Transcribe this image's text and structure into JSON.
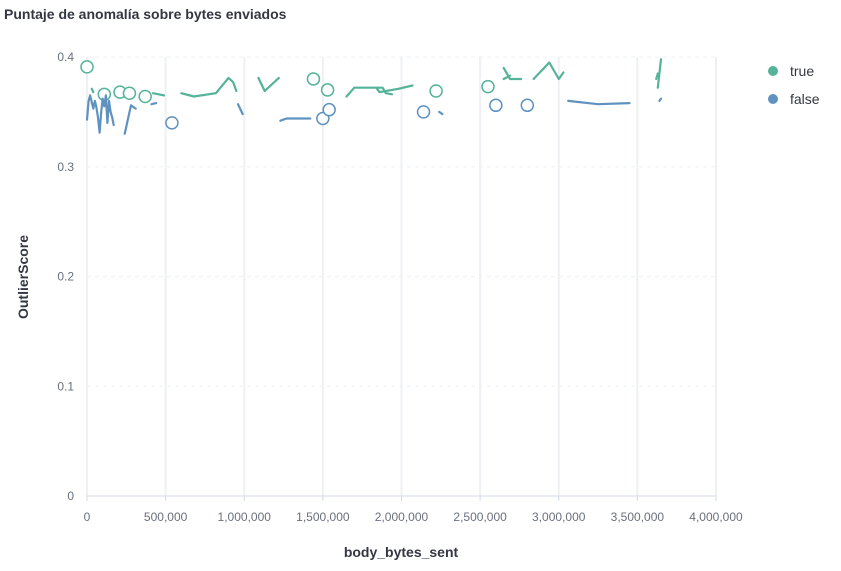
{
  "title": "Puntaje de anomalía sobre bytes enviados",
  "legend": {
    "items": [
      {
        "label": "true",
        "color": "#54b399"
      },
      {
        "label": "false",
        "color": "#6092c0"
      }
    ]
  },
  "chart_data": {
    "type": "line",
    "title": "Puntaje de anomalía sobre bytes enviados",
    "xlabel": "body_bytes_sent",
    "ylabel": "OutlierScore",
    "xlim": [
      0,
      4000000
    ],
    "ylim": [
      0,
      0.4
    ],
    "x_ticks": [
      0,
      500000,
      1000000,
      1500000,
      2000000,
      2500000,
      3000000,
      3500000,
      4000000
    ],
    "x_tick_labels": [
      "0",
      "500,000",
      "1,000,000",
      "1,500,000",
      "2,000,000",
      "2,500,000",
      "3,000,000",
      "3,500,000",
      "4,000,000"
    ],
    "y_ticks": [
      0,
      0.1,
      0.2,
      0.3,
      0.4
    ],
    "y_tick_labels": [
      "0",
      "0.1",
      "0.2",
      "0.3",
      "0.4"
    ],
    "grid": true,
    "legend_position": "top-right",
    "series": [
      {
        "name": "true",
        "color": "#54b399",
        "segments": [
          [
            [
              30000,
              0.371
            ],
            [
              40000,
              0.368
            ]
          ],
          [
            [
              420000,
              0.367
            ],
            [
              490000,
              0.365
            ]
          ],
          [
            [
              600000,
              0.367
            ],
            [
              680000,
              0.364
            ],
            [
              820000,
              0.367
            ],
            [
              900000,
              0.381
            ],
            [
              930000,
              0.377
            ],
            [
              950000,
              0.369
            ]
          ],
          [
            [
              1090000,
              0.381
            ],
            [
              1130000,
              0.369
            ],
            [
              1220000,
              0.381
            ]
          ],
          [
            [
              1650000,
              0.364
            ],
            [
              1700000,
              0.372
            ],
            [
              1880000,
              0.372
            ],
            [
              1900000,
              0.367
            ],
            [
              1940000,
              0.366
            ]
          ],
          [
            [
              1840000,
              0.372
            ],
            [
              1860000,
              0.368
            ],
            [
              1980000,
              0.371
            ],
            [
              2070000,
              0.374
            ]
          ],
          [
            [
              2650000,
              0.39
            ],
            [
              2690000,
              0.38
            ],
            [
              2760000,
              0.38
            ]
          ],
          [
            [
              2650000,
              0.38
            ],
            [
              2690000,
              0.383
            ]
          ],
          [
            [
              2840000,
              0.38
            ],
            [
              2880000,
              0.386
            ],
            [
              2940000,
              0.395
            ],
            [
              3000000,
              0.38
            ],
            [
              3030000,
              0.386
            ]
          ],
          [
            [
              3630000,
              0.372
            ],
            [
              3650000,
              0.398
            ]
          ],
          [
            [
              3620000,
              0.38
            ],
            [
              3630000,
              0.385
            ]
          ]
        ],
        "points": [
          [
            0,
            0.391
          ],
          [
            110000,
            0.366
          ],
          [
            210000,
            0.368
          ],
          [
            270000,
            0.367
          ],
          [
            370000,
            0.364
          ],
          [
            1440000,
            0.38
          ],
          [
            1530000,
            0.37
          ],
          [
            2220000,
            0.369
          ],
          [
            2550000,
            0.373
          ]
        ]
      },
      {
        "name": "false",
        "color": "#6092c0",
        "segments": [
          [
            [
              0,
              0.343
            ],
            [
              10000,
              0.36
            ],
            [
              20000,
              0.365
            ],
            [
              40000,
              0.353
            ],
            [
              50000,
              0.36
            ],
            [
              60000,
              0.354
            ],
            [
              70000,
              0.345
            ],
            [
              80000,
              0.331
            ],
            [
              90000,
              0.35
            ],
            [
              100000,
              0.362
            ],
            [
              110000,
              0.355
            ],
            [
              120000,
              0.365
            ],
            [
              130000,
              0.34
            ],
            [
              140000,
              0.36
            ],
            [
              150000,
              0.35
            ],
            [
              160000,
              0.345
            ],
            [
              170000,
              0.338
            ]
          ],
          [
            [
              240000,
              0.33
            ],
            [
              280000,
              0.356
            ],
            [
              310000,
              0.353
            ]
          ],
          [
            [
              410000,
              0.357
            ],
            [
              440000,
              0.358
            ]
          ],
          [
            [
              960000,
              0.357
            ],
            [
              990000,
              0.348
            ]
          ],
          [
            [
              1230000,
              0.342
            ],
            [
              1270000,
              0.344
            ],
            [
              1420000,
              0.344
            ]
          ],
          [
            [
              2240000,
              0.35
            ],
            [
              2260000,
              0.348
            ]
          ],
          [
            [
              3060000,
              0.36
            ],
            [
              3250000,
              0.357
            ],
            [
              3450000,
              0.358
            ]
          ],
          [
            [
              3640000,
              0.36
            ],
            [
              3650000,
              0.362
            ]
          ]
        ],
        "points": [
          [
            540000,
            0.34
          ],
          [
            1500000,
            0.344
          ],
          [
            1540000,
            0.352
          ],
          [
            2140000,
            0.35
          ],
          [
            2600000,
            0.356
          ],
          [
            2800000,
            0.356
          ]
        ]
      }
    ]
  }
}
